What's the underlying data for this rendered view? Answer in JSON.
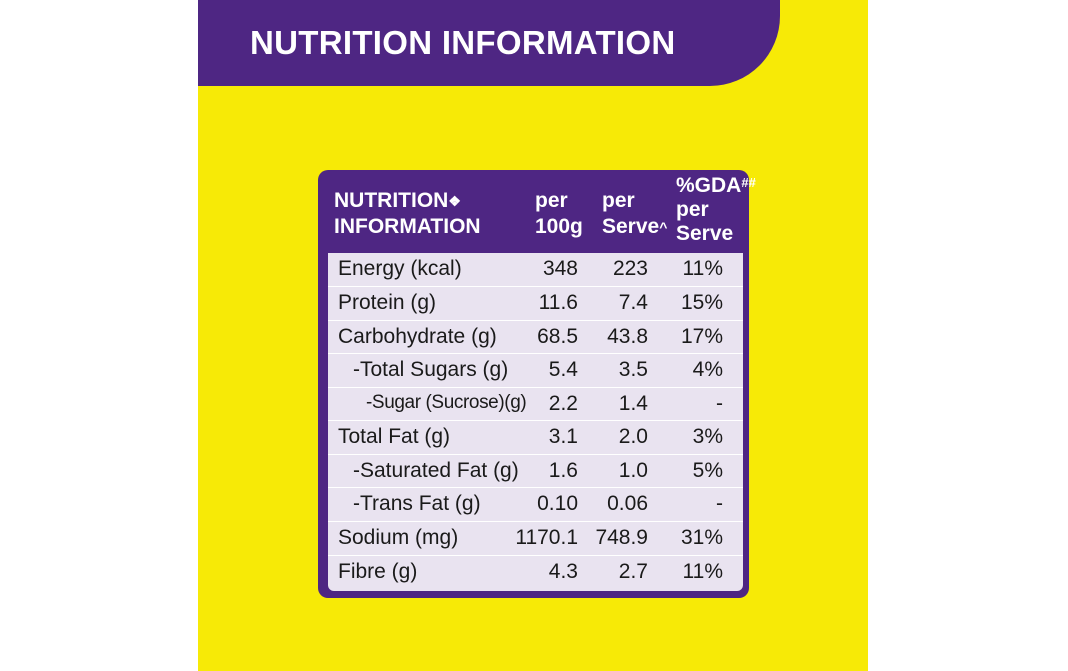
{
  "banner": {
    "title": "NUTRITION INFORMATION"
  },
  "colors": {
    "background": "#f7ea06",
    "purple": "#4e2683",
    "row_bg": "#e9e3f0"
  },
  "header": {
    "col_name_line1": "NUTRITION",
    "col_name_symbol": "❖",
    "col_name_line2": "INFORMATION",
    "col1_line1": "per",
    "col1_line2": "100g",
    "col2_line1": "per",
    "col2_line2": "Serve",
    "col2_mark": "^",
    "col3_line1": "%GDA",
    "col3_mark": "##",
    "col3_line2": "per",
    "col3_line3": "Serve"
  },
  "rows": [
    {
      "name": "Energy (kcal)",
      "per100g": "348",
      "perServe": "223",
      "gda": "11%"
    },
    {
      "name": "Protein (g)",
      "per100g": "11.6",
      "perServe": "7.4",
      "gda": "15%"
    },
    {
      "name": "Carbohydrate (g)",
      "per100g": "68.5",
      "perServe": "43.8",
      "gda": "17%"
    },
    {
      "name": "-Total Sugars (g)",
      "per100g": "5.4",
      "perServe": "3.5",
      "gda": "4%"
    },
    {
      "name": "-Sugar (Sucrose)(g)",
      "per100g": "2.2",
      "perServe": "1.4",
      "gda": "-"
    },
    {
      "name": "Total Fat (g)",
      "per100g": "3.1",
      "perServe": "2.0",
      "gda": "3%"
    },
    {
      "name": "-Saturated Fat (g)",
      "per100g": "1.6",
      "perServe": "1.0",
      "gda": "5%"
    },
    {
      "name": "-Trans Fat (g)",
      "per100g": "0.10",
      "perServe": "0.06",
      "gda": "-"
    },
    {
      "name": "Sodium (mg)",
      "per100g": "1170.1",
      "perServe": "748.9",
      "gda": "31%"
    },
    {
      "name": "Fibre (g)",
      "per100g": "4.3",
      "perServe": "2.7",
      "gda": "11%"
    }
  ]
}
